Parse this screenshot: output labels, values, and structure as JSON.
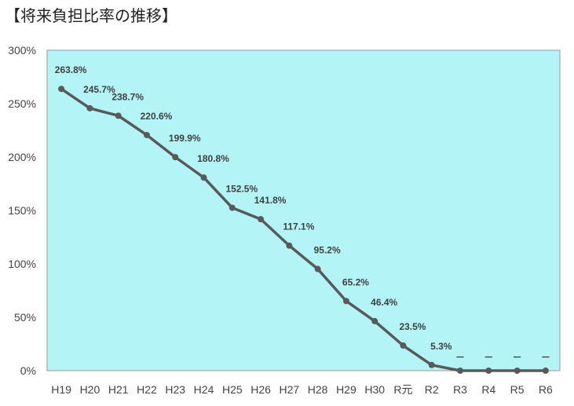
{
  "title": "【将来負担比率の推移】",
  "chart_data": {
    "type": "line",
    "title": "【将来負担比率の推移】",
    "xlabel": "",
    "ylabel": "",
    "categories": [
      "H19",
      "H20",
      "H21",
      "H22",
      "H23",
      "H24",
      "H25",
      "H26",
      "H27",
      "H28",
      "H29",
      "H30",
      "R元",
      "R2",
      "R3",
      "R4",
      "R5",
      "R6"
    ],
    "series": [
      {
        "values": [
          263.8,
          245.7,
          238.7,
          220.6,
          199.9,
          180.8,
          152.5,
          141.8,
          117.1,
          95.2,
          65.2,
          46.4,
          23.5,
          5.3,
          0,
          0,
          0,
          0
        ],
        "data_labels": [
          "263.8%",
          "245.7%",
          "238.7%",
          "220.6%",
          "199.9%",
          "180.8%",
          "152.5%",
          "141.8%",
          "117.1%",
          "95.2%",
          "65.2%",
          "46.4%",
          "23.5%",
          "5.3%",
          "－",
          "－",
          "－",
          "－"
        ]
      }
    ],
    "ylim": [
      0,
      300
    ],
    "yticks": [
      "0%",
      "50%",
      "100%",
      "150%",
      "200%",
      "250%",
      "300%"
    ],
    "ytick_values": [
      0,
      50,
      100,
      150,
      200,
      250,
      300
    ],
    "colors": {
      "plot_background": "#b3f5f7",
      "line": "#595959",
      "marker": "#595959"
    },
    "grid": false,
    "legend": "none"
  }
}
